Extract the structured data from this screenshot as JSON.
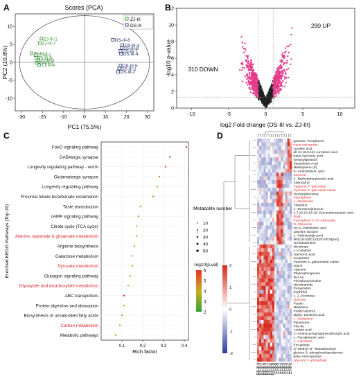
{
  "panel_letters": [
    "A",
    "B",
    "C",
    "D"
  ],
  "colors": {
    "zj": "#2e8b2e",
    "ds": "#1f2a66",
    "up": "#e8398a",
    "ns": "#222222",
    "red_label": "#e0242a",
    "black_label": "#111111"
  },
  "chart_data": [
    {
      "type": "scatter",
      "panel": "A",
      "title": "Scores (PCA)",
      "xlabel": "PC1 (75.5%)",
      "ylabel": "PC2 (10.8%)",
      "xlim": [
        -33,
        33
      ],
      "ylim": [
        -13.5,
        13.5
      ],
      "xticks": [
        "-30",
        "-20",
        "-10",
        "0",
        "10",
        "20",
        "30"
      ],
      "yticks": [
        "-10",
        "-5",
        "0",
        "5",
        "10"
      ],
      "legend": [
        "ZJ-III",
        "DS-III"
      ],
      "legend_placement": "top-right",
      "points": [
        {
          "group": "ZJ-III",
          "label": "ZJ-III-1",
          "x": -20.5,
          "y": 6.6
        },
        {
          "group": "ZJ-III",
          "label": "ZJ-III-7",
          "x": -21.3,
          "y": 5.4
        },
        {
          "group": "ZJ-III",
          "label": "ZJ-III-2",
          "x": -25.2,
          "y": 2.5
        },
        {
          "group": "ZJ-III",
          "label": "ZJ-III-5",
          "x": -23.3,
          "y": 2.0
        },
        {
          "group": "ZJ-III",
          "label": "ZJ-III-6",
          "x": -23.0,
          "y": 1.2
        },
        {
          "group": "ZJ-III",
          "label": "ZJ-III-8",
          "x": -22.0,
          "y": 0.6
        },
        {
          "group": "ZJ-III",
          "label": "ZJ-III-3",
          "x": -22.8,
          "y": -0.1
        },
        {
          "group": "ZJ-III",
          "label": "ZJ-III-4",
          "x": -21.7,
          "y": -0.7
        },
        {
          "group": "DS-III",
          "label": "DS-III-6",
          "x": 13.5,
          "y": 6.3
        },
        {
          "group": "DS-III",
          "label": "DS-III-3",
          "x": 18.0,
          "y": 4.8
        },
        {
          "group": "DS-III",
          "label": "DS-III-8",
          "x": 17.6,
          "y": 4.0
        },
        {
          "group": "DS-III",
          "label": "DS-III-7",
          "x": 17.1,
          "y": 3.2
        },
        {
          "group": "DS-III",
          "label": "DS-III-4",
          "x": 17.4,
          "y": 2.4
        },
        {
          "group": "DS-III",
          "label": "DS-III-5",
          "x": 17.1,
          "y": -0.9
        },
        {
          "group": "DS-III",
          "label": "DS-III-1",
          "x": 16.5,
          "y": -1.7
        },
        {
          "group": "DS-III",
          "label": "DS-III-2",
          "x": 16.0,
          "y": -2.6
        }
      ]
    },
    {
      "type": "scatter",
      "panel": "B",
      "title": "",
      "xlabel": "log2 Fold change (DS-III vs. ZJ-III)",
      "ylabel": "-log10 p-value",
      "xlim": [
        -12,
        12
      ],
      "ylim": [
        0,
        12
      ],
      "xticks": [
        "-10",
        "-5",
        "0",
        "5",
        "10"
      ],
      "yticks": [
        "0",
        "2",
        "4",
        "6",
        "8",
        "10",
        "12"
      ],
      "annotations": [
        "290 UP",
        "310 DOWN"
      ],
      "threshold_x": [
        -1,
        1
      ],
      "threshold_y": 1.3
    },
    {
      "type": "scatter",
      "panel": "C",
      "title": "",
      "xlabel": "Rich factor",
      "ylabel": "Enriched KEGG Pathways (Top 20)",
      "xlim": [
        0,
        0.42
      ],
      "xticks": [
        "0.1",
        "0.2",
        "0.3",
        "0.4"
      ],
      "size_legend_title": "Metabolite number",
      "size_legend": [
        10,
        20,
        30,
        40,
        50
      ],
      "color_legend_title": "-log10(p.val)",
      "color_legend_ticks": [
        2,
        3,
        4,
        5,
        6
      ],
      "pathways": [
        {
          "name": "FoxO signaling pathway",
          "rich": 0.41,
          "pval": 6.0,
          "highlight": false
        },
        {
          "name": "GABAergic synapse",
          "rich": 0.33,
          "pval": 5.5,
          "highlight": false
        },
        {
          "name": "Longevity regulating pathway - worm",
          "rich": 0.31,
          "pval": 5.3,
          "highlight": false
        },
        {
          "name": "Glutamatergic synapse",
          "rich": 0.28,
          "pval": 5.0,
          "highlight": false
        },
        {
          "name": "Longevity regulating pathway",
          "rich": 0.27,
          "pval": 4.9,
          "highlight": false
        },
        {
          "name": "Proximal tubule bicarbonate reclamation",
          "rich": 0.25,
          "pval": 4.8,
          "highlight": false
        },
        {
          "name": "Taste transduction",
          "rich": 0.19,
          "pval": 4.6,
          "highlight": false
        },
        {
          "name": "cAMP signaling pathway",
          "rich": 0.18,
          "pval": 4.5,
          "highlight": false
        },
        {
          "name": "Citrate cycle (TCA cycle)",
          "rich": 0.17,
          "pval": 4.4,
          "highlight": false
        },
        {
          "name": "Alanine, aspartate & glutamate metabolism",
          "rich": 0.17,
          "pval": 4.3,
          "highlight": true
        },
        {
          "name": "Arginine biosynthesis",
          "rich": 0.16,
          "pval": 4.2,
          "highlight": false
        },
        {
          "name": "Galactose metabolism",
          "rich": 0.15,
          "pval": 4.1,
          "highlight": false
        },
        {
          "name": "Pyruvate metabolism",
          "rich": 0.15,
          "pval": 4.0,
          "highlight": true
        },
        {
          "name": "Glucagon signaling pathway",
          "rich": 0.14,
          "pval": 3.9,
          "highlight": false
        },
        {
          "name": "Glyoxylate and dicarboxylate metabolism",
          "rich": 0.13,
          "pval": 3.8,
          "highlight": true
        },
        {
          "name": "ABC transporters",
          "rich": 0.11,
          "pval": 6.2,
          "highlight": false
        },
        {
          "name": "Protein digestion and absorption",
          "rich": 0.11,
          "pval": 3.6,
          "highlight": false
        },
        {
          "name": "Biosynthesis of unsaturated fatty acids",
          "rich": 0.1,
          "pval": 3.5,
          "highlight": false
        },
        {
          "name": "Carbon metabolism",
          "rich": 0.09,
          "pval": 3.4,
          "highlight": true
        },
        {
          "name": "Metabolic pathways",
          "rich": 0.07,
          "pval": 3.3,
          "highlight": false
        }
      ]
    },
    {
      "type": "heatmap",
      "panel": "D",
      "columns": [
        "DS-III-4",
        "DS-III-3",
        "DS-III-1",
        "DS-III-5",
        "DS-III-7",
        "DS-III-2",
        "DS-III-6",
        "DS-III-8",
        "ZJ-III-6",
        "ZJ-III-5",
        "ZJ-III-1",
        "ZJ-III-3",
        "ZJ-III-2",
        "ZJ-III-4",
        "ZJ-III-7",
        "ZJ-III-8"
      ],
      "colorbar_ticks": [
        "2",
        "1",
        "0",
        "-1",
        "-2"
      ],
      "colorbar_range": [
        -2,
        2
      ],
      "row_clusters": [
        {
          "rows": [
            "gamma--Tocopherol",
            "trans-cinnamate",
            "Linoleic acid",
            "all cis-(6,9,12)--Linolenic acid",
            "trans-Vaccenic acid",
            "Geranylgeraniol",
            "Stearidonic Acid",
            "Methoprene (S)",
            "4--Aminobutyric acid"
          ],
          "hot_cols": [
            14,
            15
          ]
        },
        {
          "rows": [
            "Sucrose",
            "3--Methylphenylacetic acid",
            "Adenosine",
            "Apigenin 7--glucoside",
            "Cyanidin 3--glucoside cation",
            "Deoxyadenosine",
            "Kaempferol",
            "L--Glutamate",
            "Thiamine",
            "1--Deoxynojirimycin",
            "4,7,10,13,16,19--Docosahexaenoic acid",
            "Rutin",
            "Kaempferol 3--O--rutinoside",
            "D--Mannose",
            "cis-9--Palmitoleic acid",
            "Jasmine lactone",
            "1--Palmitoylglycerol",
            "MG(18:3(9Z,12Z)/0:0/0:0)[rac]",
            "Trehalosamine"
          ],
          "hot_cols": [
            9,
            10,
            11
          ]
        },
        {
          "rows": [
            "Nicotinate",
            "L--Carnitine",
            "Jasmonic acid",
            "Scopoletin",
            "Peonidin 3--galactoside cation",
            "Uracil",
            "Adenine",
            "Phytosphingosine",
            "Ile-Leu",
            "Phosphorylcholine",
            "Nicotinamide",
            "Resveratrol",
            "Erythritol",
            "L--(--)Sorbose",
            "Quinone",
            "Fisetin",
            "Melamine",
            "Perillyl alcohol",
            "alpha--Linolenic acid",
            "L--Glutamine",
            "Pyridoxine",
            "Phe-Ile",
            "Azelaic acid",
            "1--Aminocyclopropanecarboxylic acid",
            "L--Pyroglutamic acid",
            "L--Aspartate",
            "Ercuamide",
            "S--Methyl--5'--thioadenosine",
            "glycero-3--phosphoethanolamine",
            "beta--Homoproline",
            "Glycerol 3--phosphate"
          ],
          "hot_cols": [
            0,
            1,
            2,
            3,
            4,
            5,
            6,
            7
          ]
        }
      ],
      "red_rows": [
        "trans-cinnamate",
        "Sucrose",
        "Apigenin 7--glucoside",
        "Cyanidin 3--glucoside cation",
        "Kaempferol",
        "L--Glutamate",
        "Rutin",
        "Kaempferol 3--O--rutinoside",
        "D--Mannose",
        "Quinone",
        "L--Glutamine",
        "L--Aspartate",
        "Glycerol 3--phosphate"
      ]
    }
  ]
}
